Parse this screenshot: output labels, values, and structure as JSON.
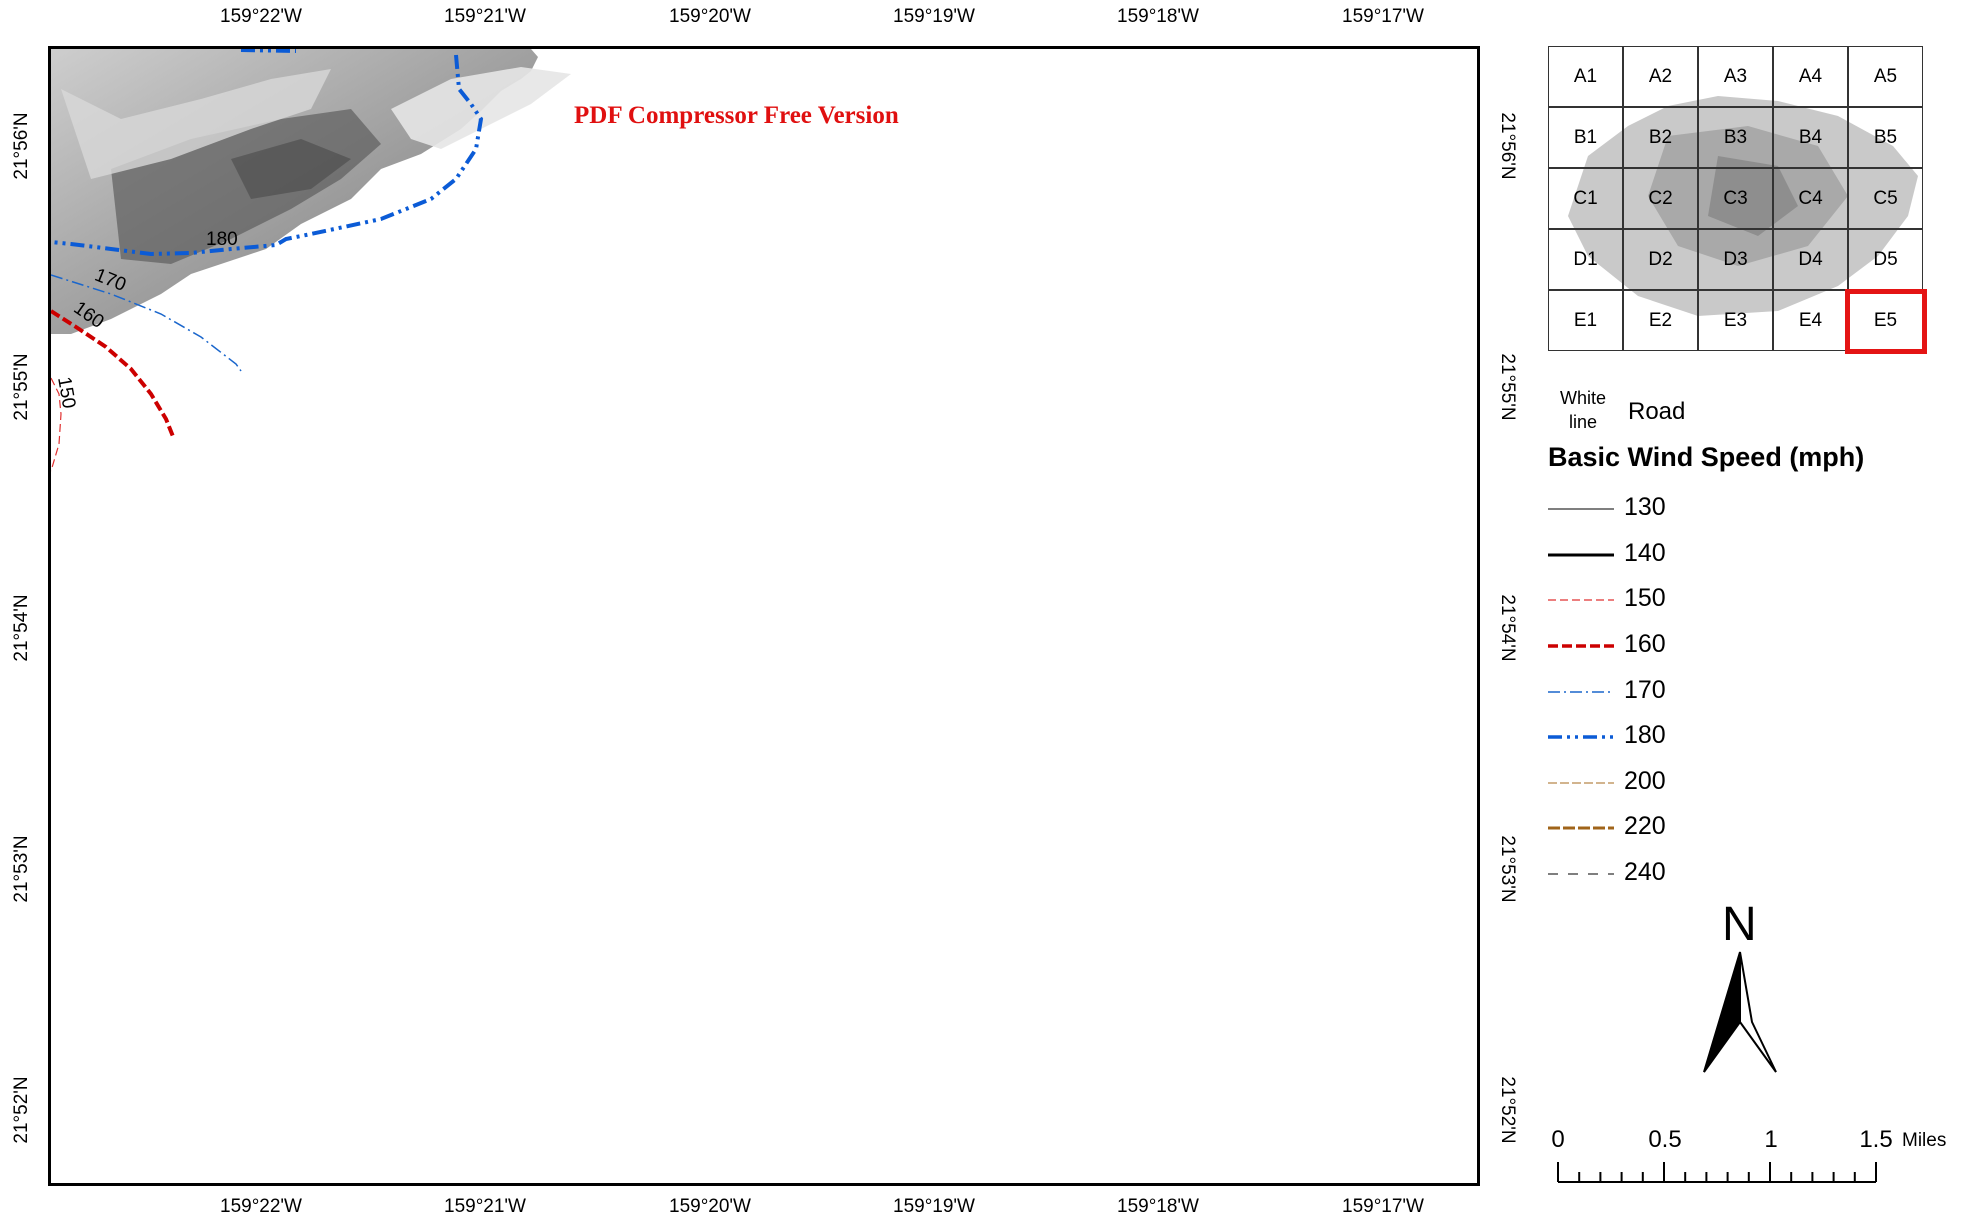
{
  "map": {
    "watermark": "PDF Compressor Free Version",
    "longitude_labels": [
      "159°22'W",
      "159°21'W",
      "159°20'W",
      "159°19'W",
      "159°18'W",
      "159°17'W"
    ],
    "latitude_labels": [
      "21°56'N",
      "21°55'N",
      "21°54'N",
      "21°53'N",
      "21°52'N"
    ],
    "contour_labels": [
      "180",
      "170",
      "160",
      "150"
    ]
  },
  "index_grid": {
    "rows": [
      [
        "A1",
        "A2",
        "A3",
        "A4",
        "A5"
      ],
      [
        "B1",
        "B2",
        "B3",
        "B4",
        "B5"
      ],
      [
        "C1",
        "C2",
        "C3",
        "C4",
        "C5"
      ],
      [
        "D1",
        "D2",
        "D3",
        "D4",
        "D5"
      ],
      [
        "E1",
        "E2",
        "E3",
        "E4",
        "E5"
      ]
    ],
    "selected": "E5",
    "selected_color": "#e41414"
  },
  "legend": {
    "road_swatch_label": "White line",
    "road_label": "Road",
    "title": "Basic Wind Speed (mph)",
    "items": [
      {
        "label": "130",
        "color": "#333333",
        "style": "thin-solid"
      },
      {
        "label": "140",
        "color": "#000000",
        "style": "thick-solid"
      },
      {
        "label": "150",
        "color": "#e03030",
        "style": "thin-dash"
      },
      {
        "label": "160",
        "color": "#cc0000",
        "style": "thick-dash"
      },
      {
        "label": "170",
        "color": "#1a66cc",
        "style": "thin-dashdot"
      },
      {
        "label": "180",
        "color": "#0b5bd6",
        "style": "thick-dashdotdot"
      },
      {
        "label": "200",
        "color": "#b8884a",
        "style": "thin-dash"
      },
      {
        "label": "220",
        "color": "#a0641a",
        "style": "thick-dash"
      },
      {
        "label": "240",
        "color": "#333333",
        "style": "sparse-dash"
      }
    ]
  },
  "north_arrow": {
    "letter": "N"
  },
  "scale_bar": {
    "labels": [
      "0",
      "0.5",
      "1",
      "1.5"
    ],
    "units": "Miles"
  }
}
